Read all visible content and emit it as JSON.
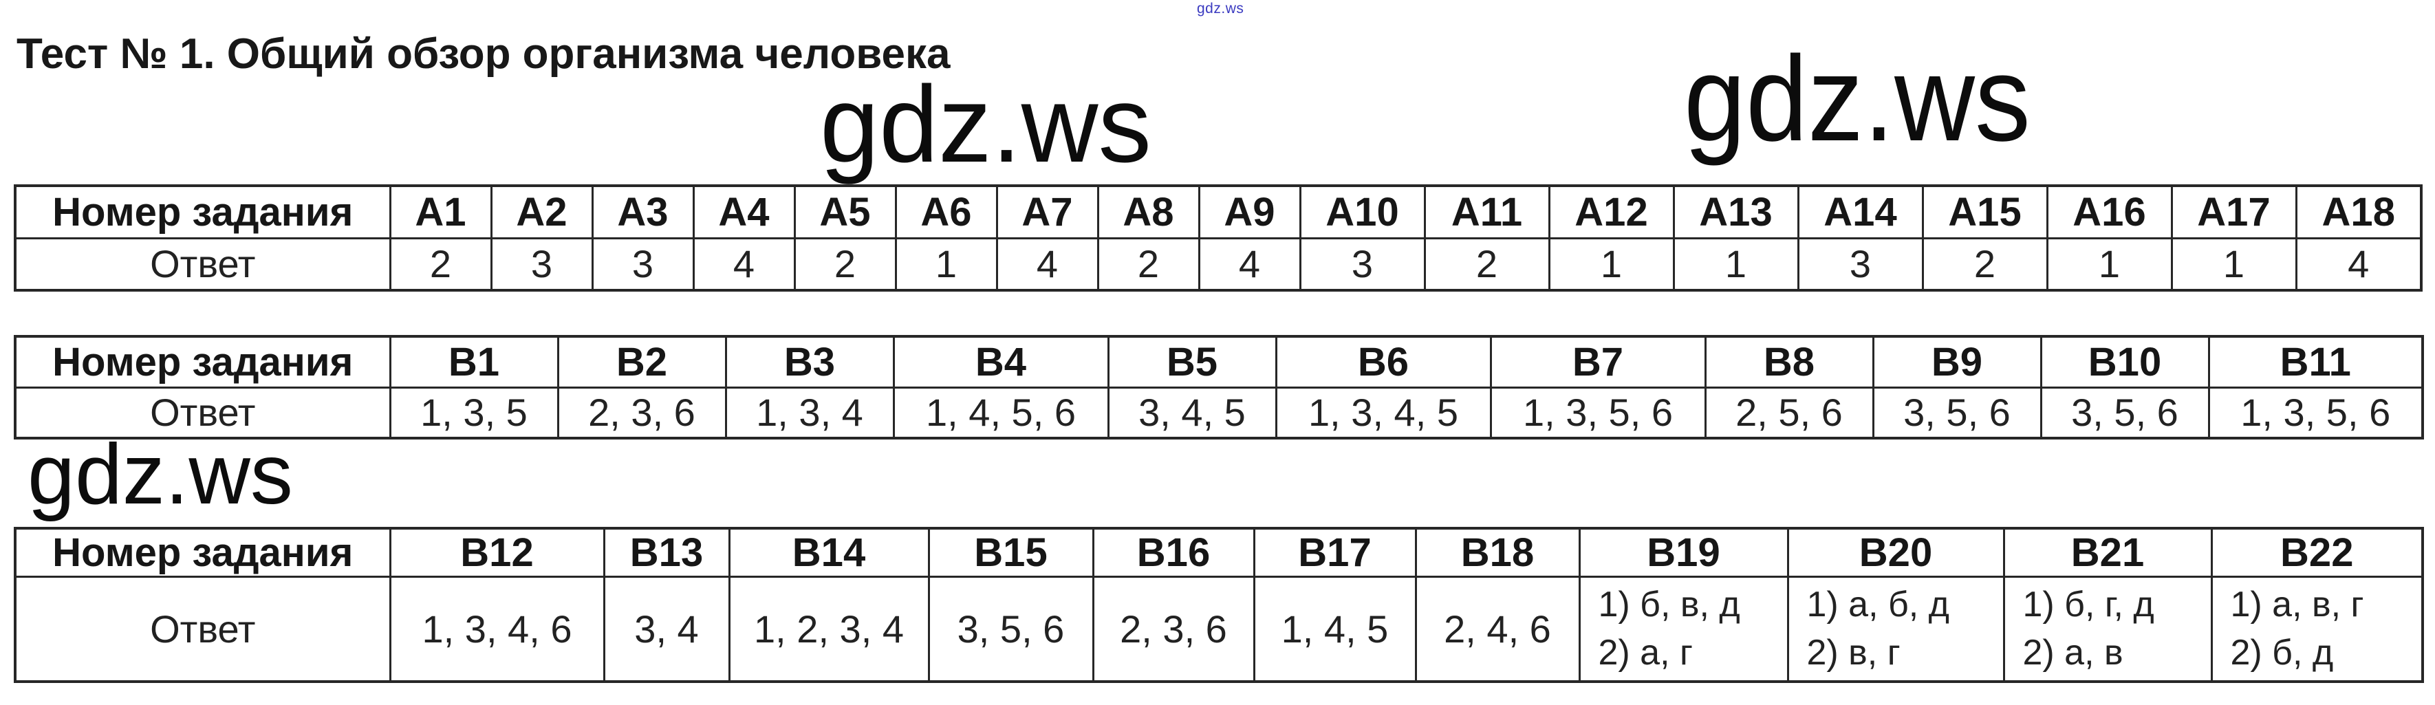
{
  "title": "Тест № 1. Общий обзор организма человека",
  "watermarks": {
    "top_small": "gdz.ws",
    "center": "gdz.ws",
    "right": "gdz.ws",
    "left": "gdz.ws"
  },
  "tables": [
    {
      "name": "part-a",
      "header_label": "Номер задания",
      "answer_label": "Ответ",
      "columns": [
        "А1",
        "А2",
        "А3",
        "А4",
        "А5",
        "А6",
        "А7",
        "А8",
        "А9",
        "А10",
        "А11",
        "А12",
        "А13",
        "А14",
        "А15",
        "А16",
        "А17",
        "А18"
      ],
      "answers": [
        "2",
        "3",
        "3",
        "4",
        "2",
        "1",
        "4",
        "2",
        "4",
        "3",
        "2",
        "1",
        "1",
        "3",
        "2",
        "1",
        "1",
        "4"
      ]
    },
    {
      "name": "part-b-first",
      "header_label": "Номер задания",
      "answer_label": "Ответ",
      "columns": [
        "В1",
        "В2",
        "В3",
        "В4",
        "В5",
        "В6",
        "В7",
        "В8",
        "В9",
        "В10",
        "В11"
      ],
      "answers": [
        "1, 3, 5",
        "2, 3, 6",
        "1, 3, 4",
        "1, 4, 5, 6",
        "3, 4, 5",
        "1, 3, 4, 5",
        "1, 3, 5, 6",
        "2, 5, 6",
        "3, 5, 6",
        "3, 5, 6",
        "1, 3, 5, 6"
      ]
    },
    {
      "name": "part-b-second",
      "header_label": "Номер задания",
      "answer_label": "Ответ",
      "columns": [
        "В12",
        "В13",
        "В14",
        "В15",
        "В16",
        "В17",
        "В18",
        "В19",
        "В20",
        "В21",
        "В22"
      ],
      "answers": [
        "1, 3, 4, 6",
        "3, 4",
        "1, 2, 3, 4",
        "3, 5, 6",
        "2, 3, 6",
        "1, 4, 5",
        "2, 4, 6",
        "1) б, в, д\n2) а, г",
        "1) а, б, д\n2) в, г",
        "1) б, г, д\n2) а, в",
        "1) а, в, г\n2) б, д"
      ]
    }
  ]
}
